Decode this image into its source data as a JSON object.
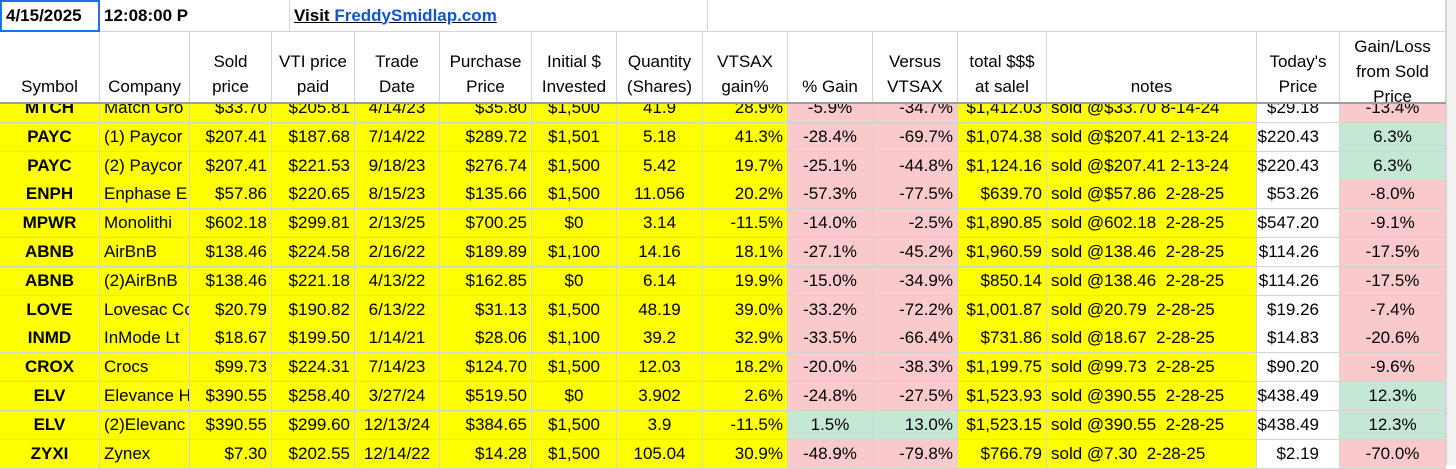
{
  "top": {
    "date": "4/15/2025",
    "time": "12:08:00 P",
    "visit": "Visit",
    "link": "FreddySmidlap.com"
  },
  "headers": [
    "Symbol",
    "Company",
    "Sold\nprice",
    "VTI price\npaid",
    "Trade\nDate",
    "Purchase\nPrice",
    "Initial $\nInvested",
    "Quantity\n(Shares)",
    "VTSAX\ngain%",
    "% Gain",
    "Versus\nVTSAX",
    "total $$$\nat salel",
    "notes",
    "Today's\nPrice",
    "Gain/Loss\nfrom Sold\nPrice"
  ],
  "rows": [
    [
      "MTCH",
      "Match Gro",
      "$33.70",
      "$205.81",
      "4/14/23",
      "$35.80",
      "$1,500",
      "41.9",
      "28.9%",
      "-5.9%",
      "-34.7%",
      "$1,412.03",
      "sold @$33.70 8-14-24",
      "$29.18",
      "-13.4%"
    ],
    [
      "PAYC",
      "(1) Paycor",
      "$207.41",
      "$187.68",
      "7/14/22",
      "$289.72",
      "$1,501",
      "5.18",
      "41.3%",
      "-28.4%",
      "-69.7%",
      "$1,074.38",
      "sold @$207.41 2-13-24",
      "$220.43",
      "6.3%"
    ],
    [
      "PAYC",
      "(2) Paycor",
      "$207.41",
      "$221.53",
      "9/18/23",
      "$276.74",
      "$1,500",
      "5.42",
      "19.7%",
      "-25.1%",
      "-44.8%",
      "$1,124.16",
      "sold @$207.41 2-13-24",
      "$220.43",
      "6.3%"
    ],
    [
      "ENPH",
      "Enphase E",
      "$57.86",
      "$220.65",
      "8/15/23",
      "$135.66",
      "$1,500",
      "11.056",
      "20.2%",
      "-57.3%",
      "-77.5%",
      "$639.70",
      "sold @$57.86  2-28-25",
      "$53.26",
      "-8.0%"
    ],
    [
      "MPWR",
      "Monolithi",
      "$602.18",
      "$299.81",
      "2/13/25",
      "$700.25",
      "$0",
      "3.14",
      "-11.5%",
      "-14.0%",
      "-2.5%",
      "$1,890.85",
      "sold @602.18  2-28-25",
      "$547.20",
      "-9.1%"
    ],
    [
      "ABNB",
      "AirBnB",
      "$138.46",
      "$224.58",
      "2/16/22",
      "$189.89",
      "$1,100",
      "14.16",
      "18.1%",
      "-27.1%",
      "-45.2%",
      "$1,960.59",
      "sold @138.46  2-28-25",
      "$114.26",
      "-17.5%"
    ],
    [
      "ABNB",
      "(2)AirBnB",
      "$138.46",
      "$221.18",
      "4/13/22",
      "$162.85",
      "$0",
      "6.14",
      "19.9%",
      "-15.0%",
      "-34.9%",
      "$850.14",
      "sold @138.46  2-28-25",
      "$114.26",
      "-17.5%"
    ],
    [
      "LOVE",
      "Lovesac Co",
      "$20.79",
      "$190.82",
      "6/13/22",
      "$31.13",
      "$1,500",
      "48.19",
      "39.0%",
      "-33.2%",
      "-72.2%",
      "$1,001.87",
      "sold @20.79  2-28-25",
      "$19.26",
      "-7.4%"
    ],
    [
      "INMD",
      "InMode Lt",
      "$18.67",
      "$199.50",
      "1/14/21",
      "$28.06",
      "$1,100",
      "39.2",
      "32.9%",
      "-33.5%",
      "-66.4%",
      "$731.86",
      "sold @18.67  2-28-25",
      "$14.83",
      "-20.6%"
    ],
    [
      "CROX",
      "Crocs",
      "$99.73",
      "$224.31",
      "7/14/23",
      "$124.70",
      "$1,500",
      "12.03",
      "18.2%",
      "-20.0%",
      "-38.3%",
      "$1,199.75",
      "sold @99.73  2-28-25",
      "$90.20",
      "-9.6%"
    ],
    [
      "ELV",
      "Elevance H",
      "$390.55",
      "$258.40",
      "3/27/24",
      "$519.50",
      "$0",
      "3.902",
      "2.6%",
      "-24.8%",
      "-27.5%",
      "$1,523.93",
      "sold @390.55  2-28-25",
      "$438.49",
      "12.3%"
    ],
    [
      "ELV",
      "(2)Elevanc",
      "$390.55",
      "$299.60",
      "12/13/24",
      "$384.65",
      "$1,500",
      "3.9",
      "-11.5%",
      "1.5%",
      "13.0%",
      "$1,523.15",
      "sold @390.55  2-28-25",
      "$438.49",
      "12.3%"
    ],
    [
      "ZYXI",
      "Zynex",
      "$7.30",
      "$202.55",
      "12/14/22",
      "$14.28",
      "$1,500",
      "105.04",
      "30.9%",
      "-48.9%",
      "-79.8%",
      "$766.79",
      "sold @7.30  2-28-25",
      "$2.19",
      "-70.0%"
    ]
  ]
}
